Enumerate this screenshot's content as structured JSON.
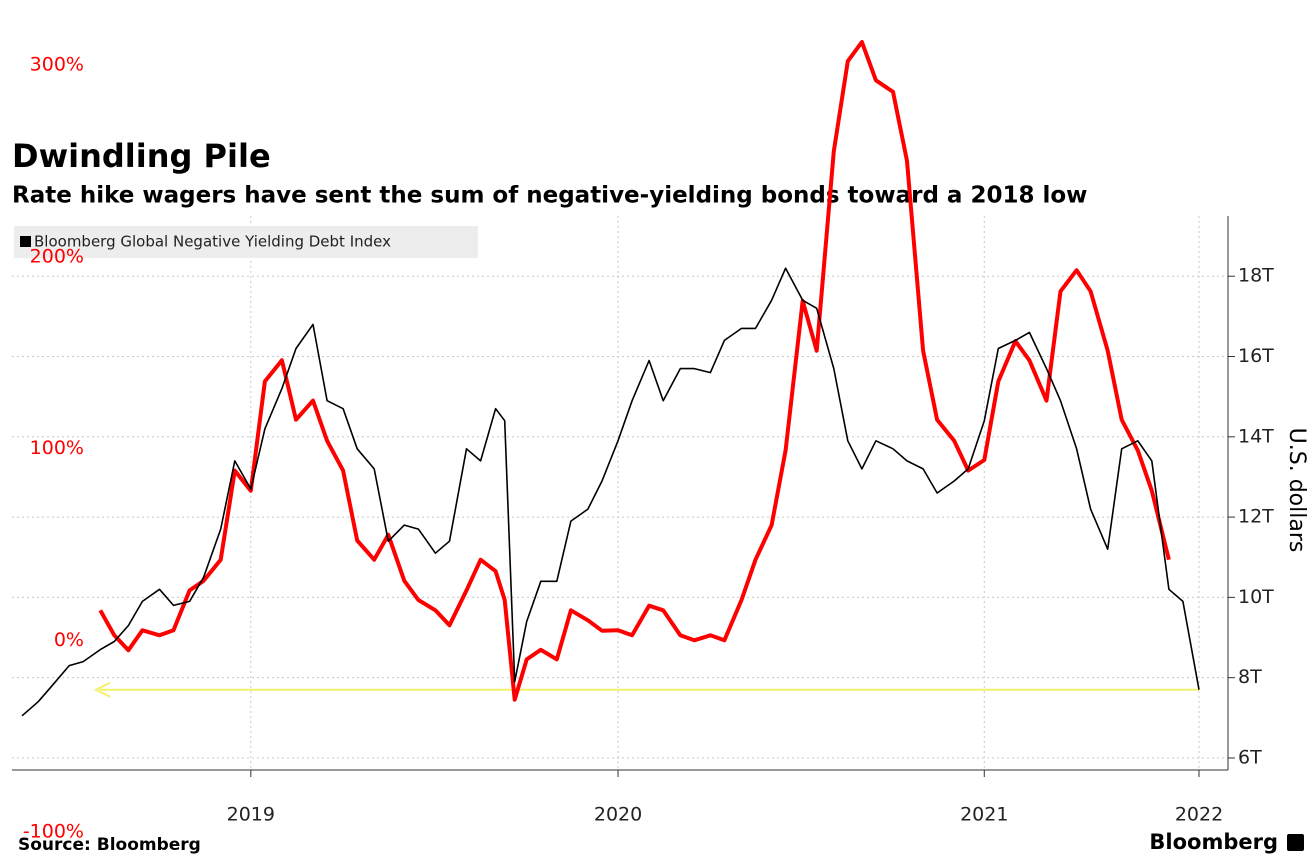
{
  "chart_data": {
    "type": "line",
    "title": "Dwindling Pile",
    "subtitle": "Rate hike wagers have sent the sum of negative-yielding bonds toward a 2018 low",
    "source": "Source: Bloomberg",
    "brand": "Bloomberg",
    "y2label": "U.S. dollars",
    "x": [
      "2018-11-15",
      "2018-12-01",
      "2018-12-15",
      "2019-01-01",
      "2019-01-15",
      "2019-02-01",
      "2019-02-15",
      "2019-03-01",
      "2019-03-15",
      "2019-04-01",
      "2019-04-15",
      "2019-05-01",
      "2019-05-15",
      "2019-06-01",
      "2019-06-15",
      "2019-07-01",
      "2019-07-15",
      "2019-08-01",
      "2019-08-15",
      "2019-09-01",
      "2019-09-15",
      "2019-10-01",
      "2019-10-15",
      "2019-11-01",
      "2019-11-15",
      "2019-12-01",
      "2019-12-15",
      "2020-01-01",
      "2020-01-15",
      "2020-02-01",
      "2020-02-15",
      "2020-03-01",
      "2020-03-10",
      "2020-03-20",
      "2020-04-01",
      "2020-04-15",
      "2020-05-01",
      "2020-05-15",
      "2020-06-01",
      "2020-06-15",
      "2020-07-01",
      "2020-07-15",
      "2020-08-01",
      "2020-08-15",
      "2020-09-01",
      "2020-09-15",
      "2020-10-01",
      "2020-10-15",
      "2020-11-01",
      "2020-11-15",
      "2020-12-01",
      "2020-12-15",
      "2021-01-01",
      "2021-01-15",
      "2021-02-01",
      "2021-02-15",
      "2021-03-01",
      "2021-03-15",
      "2021-04-01",
      "2021-04-15",
      "2021-05-01",
      "2021-05-15",
      "2021-06-01",
      "2021-06-15",
      "2021-07-01",
      "2021-07-15",
      "2021-08-01",
      "2021-08-15",
      "2021-09-01",
      "2021-09-15",
      "2021-10-01",
      "2021-10-15",
      "2021-11-01",
      "2021-11-15",
      "2021-12-01",
      "2021-12-15",
      "2022-01-01",
      "2022-01-15",
      "2022-01-31"
    ],
    "xlim": [
      "2018-11-05",
      "2022-02-01"
    ],
    "xticks": [
      {
        "value": "2019-07-01",
        "label": "2019"
      },
      {
        "value": "2020-07-01",
        "label": "2020"
      },
      {
        "value": "2021-07-01",
        "label": "2021"
      },
      {
        "value": "2022-01-31",
        "label": "2022"
      }
    ],
    "ylim": [
      -100,
      300
    ],
    "yticks": [
      {
        "value": -100,
        "label": "-100%"
      },
      {
        "value": 0,
        "label": "0%"
      },
      {
        "value": 100,
        "label": "100%"
      },
      {
        "value": 200,
        "label": "200%"
      },
      {
        "value": 300,
        "label": "300%"
      }
    ],
    "y2lim": [
      5.7,
      19.5
    ],
    "y2ticks": [
      {
        "value": 6,
        "label": "6T"
      },
      {
        "value": 8,
        "label": "8T"
      },
      {
        "value": 10,
        "label": "10T"
      },
      {
        "value": 12,
        "label": "12T"
      },
      {
        "value": 14,
        "label": "14T"
      },
      {
        "value": 16,
        "label": "16T"
      },
      {
        "value": 18,
        "label": "18T"
      }
    ],
    "grid": true,
    "legend": "top-left",
    "series": [
      {
        "name": "Bloomberg Global Negative Yielding Debt Index",
        "color": "#000000",
        "axis": "y2",
        "values": [
          7.05,
          7.4,
          7.8,
          8.3,
          8.4,
          8.7,
          8.9,
          9.3,
          9.9,
          10.2,
          9.8,
          9.9,
          10.5,
          11.7,
          13.4,
          12.7,
          14.2,
          15.2,
          16.2,
          16.8,
          14.9,
          14.7,
          13.7,
          13.2,
          11.4,
          11.8,
          11.7,
          11.1,
          11.4,
          13.7,
          13.4,
          14.7,
          14.4,
          7.9,
          9.4,
          10.4,
          10.4,
          11.9,
          12.2,
          12.9,
          13.9,
          14.9,
          15.9,
          14.9,
          15.7,
          15.7,
          15.6,
          16.4,
          16.7,
          16.7,
          17.4,
          18.2,
          17.4,
          17.2,
          15.7,
          13.9,
          13.2,
          13.9,
          13.7,
          13.4,
          13.2,
          12.6,
          12.9,
          13.2,
          14.4,
          16.2,
          16.4,
          16.6,
          15.7,
          14.9,
          13.7,
          12.2,
          11.2,
          13.7,
          13.9,
          13.4,
          10.2,
          9.9,
          7.7
        ]
      },
      {
        "color": "#ff0000",
        "values": [
          null,
          null,
          null,
          null,
          null,
          15.6,
          2.6,
          -5.2,
          5.2,
          2.6,
          5.2,
          26,
          31,
          42,
          88.5,
          78,
          135,
          146,
          115,
          125,
          104,
          88.5,
          52,
          42,
          55,
          31,
          21,
          15.6,
          7.8,
          26,
          42,
          36,
          21,
          -31,
          -10,
          -5,
          -10,
          15.6,
          10.4,
          5,
          5.2,
          2.6,
          18,
          15.6,
          2.6,
          0,
          2.6,
          0,
          21,
          42,
          60,
          99,
          177,
          151,
          255,
          302,
          312,
          292,
          286,
          250,
          151,
          115,
          104,
          88.5,
          94,
          135,
          156,
          146,
          125,
          182,
          193,
          182,
          151,
          115,
          99,
          78,
          42,
          null,
          null
        ]
      }
    ]
  }
}
